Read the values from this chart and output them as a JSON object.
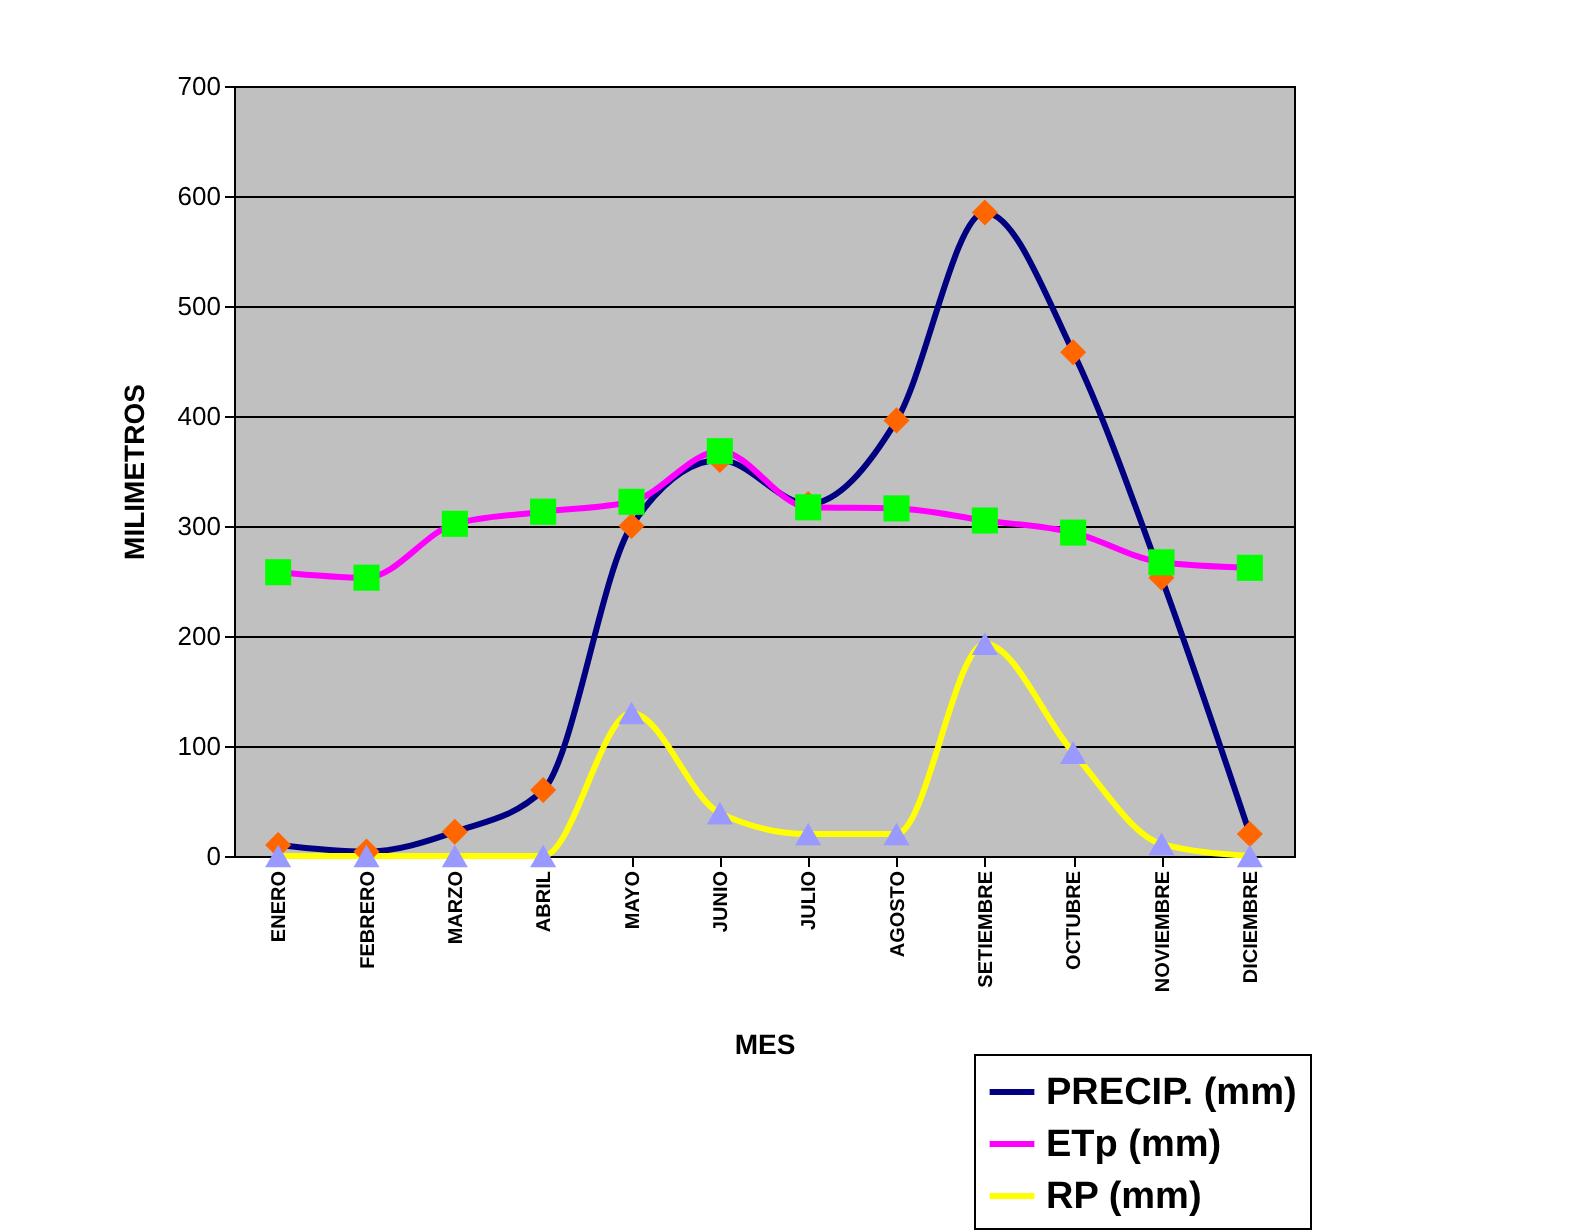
{
  "chart_data": {
    "type": "line",
    "xlabel": "MES",
    "ylabel": "MILIMETROS",
    "categories": [
      "ENERO",
      "FEBRERO",
      "MARZO",
      "ABRIL",
      "MAYO",
      "JUNIO",
      "JULIO",
      "AGOSTO",
      "SETIEMBRE",
      "OCTUBRE",
      "NOVIEMBRE",
      "DICIEMBRE"
    ],
    "series": [
      {
        "name": "PRECIP. (mm)",
        "color": "#000080",
        "marker": "diamond",
        "colors": [
          "#ff6600",
          "#ff6600",
          "#ff6600",
          "#ff6600",
          "#ff6600",
          "#ff6600",
          "#ff6600",
          "#ff6600",
          "#ff6600",
          "#ff6600",
          "#ff6600",
          "#ff6600"
        ],
        "values": [
          10,
          4,
          22,
          60,
          300,
          360,
          320,
          396,
          585,
          458,
          253,
          20
        ]
      },
      {
        "name": "ETp (mm)",
        "color": "#ff00ff",
        "marker": "square",
        "colors": [
          "#00ff00",
          "#00ff00",
          "#00ff00",
          "#00ff00",
          "#00ff00",
          "#00ff00",
          "#00ff00",
          "#00ff00",
          "#00ff00",
          "#00ff00",
          "#00ff00",
          "#00ff00"
        ],
        "values": [
          258,
          253,
          302,
          313,
          322,
          368,
          317,
          316,
          305,
          294,
          267,
          262
        ]
      },
      {
        "name": "RP (mm)",
        "color": "#ffff00",
        "marker": "triangle",
        "colors": [
          "#9999ff",
          "#9999ff",
          "#9999ff",
          "#9999ff",
          "#9999ff",
          "#9999ff",
          "#9999ff",
          "#9999ff",
          "#9999ff",
          "#9999ff",
          "#9999ff",
          "#9999ff"
        ],
        "values": [
          0,
          0,
          0,
          0,
          130,
          39,
          20,
          20,
          193,
          94,
          11,
          0
        ]
      }
    ],
    "ylim": [
      0,
      700
    ],
    "yticks": [
      0,
      100,
      200,
      300,
      400,
      500,
      600,
      700
    ],
    "grid": "y",
    "legend": "bottom right"
  }
}
